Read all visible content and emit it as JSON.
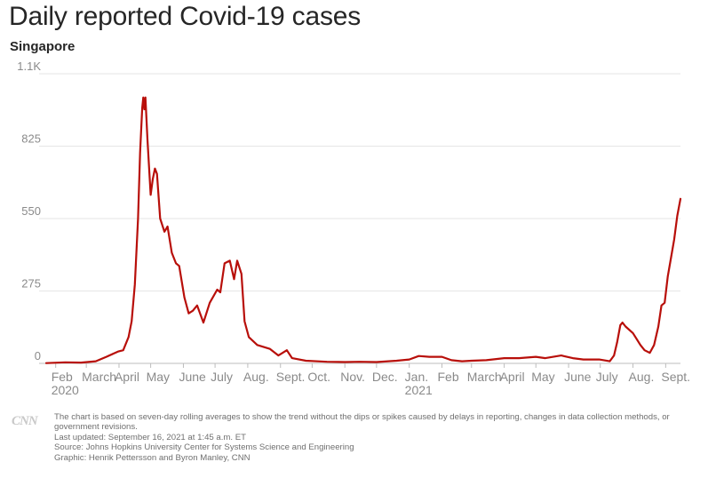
{
  "header": {
    "title": "Daily reported Covid-19 cases",
    "subtitle": "Singapore"
  },
  "colors": {
    "line": "#b80f0a",
    "grid": "#e6e6e6",
    "axis": "#8a8a8a",
    "text": "#262626"
  },
  "chart_data": {
    "type": "line",
    "title": "Daily reported Covid-19 cases",
    "subtitle": "Singapore",
    "xlabel": "",
    "ylabel": "",
    "ylim": [
      0,
      1100
    ],
    "y_ticks": [
      {
        "value": 0,
        "label": "0"
      },
      {
        "value": 275,
        "label": "275"
      },
      {
        "value": 550,
        "label": "550"
      },
      {
        "value": 825,
        "label": "825"
      },
      {
        "value": 1100,
        "label": "1.1K"
      }
    ],
    "x_range": [
      "2020-01-23",
      "2021-09-15"
    ],
    "x_ticks": [
      {
        "date": "2020-02-01",
        "label": "Feb",
        "year": "2020"
      },
      {
        "date": "2020-03-01",
        "label": "March"
      },
      {
        "date": "2020-04-01",
        "label": "April"
      },
      {
        "date": "2020-05-01",
        "label": "May"
      },
      {
        "date": "2020-06-01",
        "label": "June"
      },
      {
        "date": "2020-07-01",
        "label": "July"
      },
      {
        "date": "2020-08-01",
        "label": "Aug."
      },
      {
        "date": "2020-09-01",
        "label": "Sept."
      },
      {
        "date": "2020-10-01",
        "label": "Oct."
      },
      {
        "date": "2020-11-01",
        "label": "Nov."
      },
      {
        "date": "2020-12-01",
        "label": "Dec."
      },
      {
        "date": "2021-01-01",
        "label": "Jan.",
        "year": "2021"
      },
      {
        "date": "2021-02-01",
        "label": "Feb"
      },
      {
        "date": "2021-03-01",
        "label": "March"
      },
      {
        "date": "2021-04-01",
        "label": "April"
      },
      {
        "date": "2021-05-01",
        "label": "May"
      },
      {
        "date": "2021-06-01",
        "label": "June"
      },
      {
        "date": "2021-07-01",
        "label": "July"
      },
      {
        "date": "2021-08-01",
        "label": "Aug."
      },
      {
        "date": "2021-09-01",
        "label": "Sept."
      }
    ],
    "grid": true,
    "series": [
      {
        "points": [
          [
            "2020-01-23",
            1
          ],
          [
            "2020-02-10",
            4
          ],
          [
            "2020-02-25",
            3
          ],
          [
            "2020-03-10",
            8
          ],
          [
            "2020-03-20",
            25
          ],
          [
            "2020-03-31",
            45
          ],
          [
            "2020-04-05",
            50
          ],
          [
            "2020-04-10",
            100
          ],
          [
            "2020-04-13",
            160
          ],
          [
            "2020-04-16",
            300
          ],
          [
            "2020-04-19",
            550
          ],
          [
            "2020-04-21",
            800
          ],
          [
            "2020-04-23",
            970
          ],
          [
            "2020-04-24",
            1010
          ],
          [
            "2020-04-25",
            965
          ],
          [
            "2020-04-26",
            1010
          ],
          [
            "2020-04-28",
            850
          ],
          [
            "2020-05-01",
            640
          ],
          [
            "2020-05-03",
            700
          ],
          [
            "2020-05-05",
            740
          ],
          [
            "2020-05-07",
            720
          ],
          [
            "2020-05-10",
            550
          ],
          [
            "2020-05-14",
            500
          ],
          [
            "2020-05-17",
            520
          ],
          [
            "2020-05-21",
            420
          ],
          [
            "2020-05-25",
            380
          ],
          [
            "2020-05-28",
            370
          ],
          [
            "2020-06-02",
            250
          ],
          [
            "2020-06-06",
            190
          ],
          [
            "2020-06-10",
            200
          ],
          [
            "2020-06-14",
            220
          ],
          [
            "2020-06-20",
            155
          ],
          [
            "2020-06-26",
            230
          ],
          [
            "2020-07-03",
            280
          ],
          [
            "2020-07-06",
            270
          ],
          [
            "2020-07-10",
            380
          ],
          [
            "2020-07-15",
            390
          ],
          [
            "2020-07-19",
            320
          ],
          [
            "2020-07-22",
            390
          ],
          [
            "2020-07-26",
            340
          ],
          [
            "2020-07-29",
            160
          ],
          [
            "2020-08-02",
            100
          ],
          [
            "2020-08-10",
            70
          ],
          [
            "2020-08-22",
            55
          ],
          [
            "2020-08-30",
            30
          ],
          [
            "2020-09-07",
            50
          ],
          [
            "2020-09-12",
            20
          ],
          [
            "2020-09-25",
            10
          ],
          [
            "2020-10-15",
            6
          ],
          [
            "2020-11-01",
            5
          ],
          [
            "2020-11-15",
            6
          ],
          [
            "2020-12-01",
            5
          ],
          [
            "2020-12-20",
            10
          ],
          [
            "2021-01-01",
            15
          ],
          [
            "2021-01-10",
            28
          ],
          [
            "2021-01-20",
            25
          ],
          [
            "2021-02-01",
            25
          ],
          [
            "2021-02-10",
            12
          ],
          [
            "2021-02-20",
            8
          ],
          [
            "2021-03-01",
            10
          ],
          [
            "2021-03-15",
            12
          ],
          [
            "2021-04-01",
            20
          ],
          [
            "2021-04-15",
            20
          ],
          [
            "2021-05-01",
            25
          ],
          [
            "2021-05-10",
            20
          ],
          [
            "2021-05-25",
            30
          ],
          [
            "2021-06-05",
            20
          ],
          [
            "2021-06-15",
            15
          ],
          [
            "2021-06-30",
            15
          ],
          [
            "2021-07-10",
            8
          ],
          [
            "2021-07-14",
            30
          ],
          [
            "2021-07-17",
            80
          ],
          [
            "2021-07-20",
            145
          ],
          [
            "2021-07-22",
            155
          ],
          [
            "2021-07-25",
            140
          ],
          [
            "2021-08-01",
            115
          ],
          [
            "2021-08-08",
            70
          ],
          [
            "2021-08-12",
            50
          ],
          [
            "2021-08-17",
            40
          ],
          [
            "2021-08-21",
            70
          ],
          [
            "2021-08-25",
            140
          ],
          [
            "2021-08-28",
            220
          ],
          [
            "2021-08-31",
            230
          ],
          [
            "2021-09-03",
            330
          ],
          [
            "2021-09-06",
            400
          ],
          [
            "2021-09-09",
            470
          ],
          [
            "2021-09-12",
            560
          ],
          [
            "2021-09-15",
            625
          ]
        ]
      }
    ]
  },
  "logo": {
    "text": "CNN"
  },
  "footer": {
    "note": "The chart is based on seven-day rolling averages to show the trend without the dips or spikes caused by delays in reporting, changes in data collection methods, or government revisions.",
    "updated": "Last updated: September 16, 2021 at 1:45 a.m. ET",
    "source": "Source: Johns Hopkins University Center for Systems Science and Engineering",
    "graphic": "Graphic: Henrik Pettersson and Byron Manley, CNN"
  }
}
